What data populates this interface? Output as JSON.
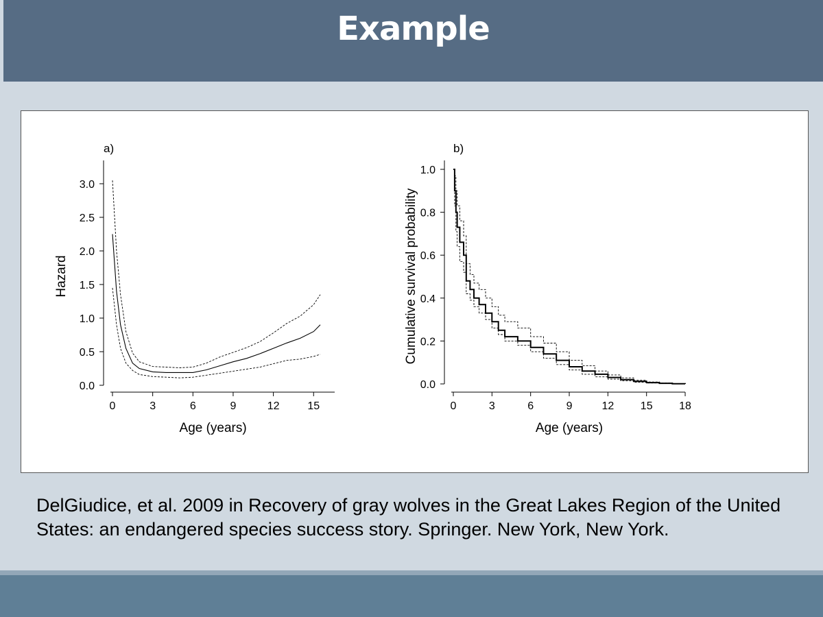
{
  "slide": {
    "title": "Example",
    "citation": "DelGiudice, et al. 2009 in Recovery of gray wolves in the Great Lakes Region of the United States:  an endangered species success story.  Springer.  New York, New York."
  },
  "colors": {
    "header": "#566c84",
    "background": "#d0d9e1",
    "footer": "#5f7f96",
    "footer_stripe": "#93a7b8"
  },
  "chart_data": [
    {
      "panel_label": "a)",
      "type": "line",
      "xlabel": "Age (years)",
      "ylabel": "Hazard",
      "xlim": [
        0,
        16
      ],
      "ylim": [
        0,
        3.2
      ],
      "xticks": [
        0,
        3,
        6,
        9,
        12,
        15
      ],
      "xtick_labels": [
        "0",
        "3",
        "6",
        "9",
        "12",
        "15"
      ],
      "yticks": [
        0,
        0.5,
        1,
        1.5,
        2,
        2.5,
        3
      ],
      "ytick_labels": [
        "0.0",
        "0.5",
        "1.0",
        "1.5",
        "2.0",
        "2.5",
        "3.0"
      ],
      "grid": false,
      "series": [
        {
          "style": "solid",
          "x": [
            0,
            0.3,
            0.6,
            1,
            1.5,
            2,
            3,
            4,
            5,
            6,
            7,
            8,
            9,
            10,
            11,
            12,
            13,
            14,
            15,
            15.5
          ],
          "y": [
            2.25,
            1.4,
            0.9,
            0.55,
            0.33,
            0.25,
            0.2,
            0.19,
            0.19,
            0.19,
            0.23,
            0.29,
            0.35,
            0.4,
            0.47,
            0.55,
            0.63,
            0.7,
            0.8,
            0.9
          ]
        },
        {
          "style": "dashed",
          "x": [
            0,
            0.3,
            0.6,
            1,
            1.5,
            2,
            3,
            4,
            5,
            6,
            7,
            8,
            9,
            10,
            11,
            12,
            13,
            14,
            15,
            15.5
          ],
          "y": [
            3.05,
            2.0,
            1.35,
            0.8,
            0.48,
            0.35,
            0.28,
            0.27,
            0.26,
            0.27,
            0.33,
            0.42,
            0.49,
            0.56,
            0.65,
            0.78,
            0.92,
            1.03,
            1.2,
            1.35
          ]
        },
        {
          "style": "dashed",
          "x": [
            0,
            0.3,
            0.6,
            1,
            1.5,
            2,
            3,
            4,
            5,
            6,
            7,
            8,
            9,
            10,
            11,
            12,
            13,
            14,
            15,
            15.5
          ],
          "y": [
            1.45,
            0.9,
            0.55,
            0.33,
            0.22,
            0.16,
            0.13,
            0.12,
            0.11,
            0.12,
            0.15,
            0.18,
            0.21,
            0.24,
            0.27,
            0.32,
            0.37,
            0.39,
            0.43,
            0.46
          ]
        }
      ]
    },
    {
      "panel_label": "b)",
      "type": "line",
      "xlabel": "Age (years)",
      "ylabel": "Cumulative survival probability",
      "xlim": [
        0,
        18
      ],
      "ylim": [
        0,
        1.05
      ],
      "xticks": [
        0,
        3,
        6,
        9,
        12,
        15,
        18
      ],
      "xtick_labels": [
        "0",
        "3",
        "6",
        "9",
        "12",
        "15",
        "18"
      ],
      "yticks": [
        0,
        0.2,
        0.4,
        0.6,
        0.8,
        1.0
      ],
      "ytick_labels": [
        "0.0",
        "0.2",
        "0.4",
        "0.6",
        "0.8",
        "1.0"
      ],
      "grid": false,
      "series": [
        {
          "style": "solid-step",
          "x": [
            0,
            0.1,
            0.2,
            0.3,
            0.5,
            0.8,
            1,
            1.3,
            1.6,
            2,
            2.5,
            3,
            3.5,
            4,
            5,
            6,
            7,
            8,
            9,
            10,
            11,
            12,
            13,
            14,
            15,
            16,
            17,
            18
          ],
          "y": [
            1.0,
            0.9,
            0.8,
            0.73,
            0.66,
            0.6,
            0.48,
            0.44,
            0.4,
            0.37,
            0.33,
            0.29,
            0.25,
            0.22,
            0.2,
            0.17,
            0.14,
            0.11,
            0.08,
            0.06,
            0.045,
            0.03,
            0.02,
            0.012,
            0.006,
            0.003,
            0.001,
            0.0
          ]
        },
        {
          "style": "dashed-step",
          "x": [
            0,
            0.1,
            0.2,
            0.3,
            0.5,
            0.8,
            1,
            1.3,
            1.6,
            2,
            2.5,
            3,
            3.5,
            4,
            5,
            6,
            7,
            8,
            9,
            10,
            11,
            12,
            13,
            14,
            15,
            16,
            17,
            18
          ],
          "y": [
            1.0,
            0.97,
            0.9,
            0.83,
            0.76,
            0.69,
            0.56,
            0.51,
            0.47,
            0.44,
            0.4,
            0.36,
            0.32,
            0.29,
            0.26,
            0.22,
            0.19,
            0.15,
            0.11,
            0.085,
            0.06,
            0.042,
            0.028,
            0.017,
            0.009,
            0.004,
            0.002,
            0.0
          ]
        },
        {
          "style": "dashed-step",
          "x": [
            0,
            0.1,
            0.2,
            0.3,
            0.5,
            0.8,
            1,
            1.3,
            1.6,
            2,
            2.5,
            3,
            3.5,
            4,
            5,
            6,
            7,
            8,
            9,
            10,
            11,
            12,
            13,
            14,
            15,
            16,
            17,
            18
          ],
          "y": [
            1.0,
            0.83,
            0.71,
            0.64,
            0.57,
            0.52,
            0.42,
            0.39,
            0.36,
            0.33,
            0.3,
            0.26,
            0.23,
            0.2,
            0.18,
            0.15,
            0.12,
            0.09,
            0.065,
            0.045,
            0.033,
            0.022,
            0.014,
            0.008,
            0.004,
            0.002,
            0.001,
            0.0
          ]
        }
      ]
    }
  ]
}
